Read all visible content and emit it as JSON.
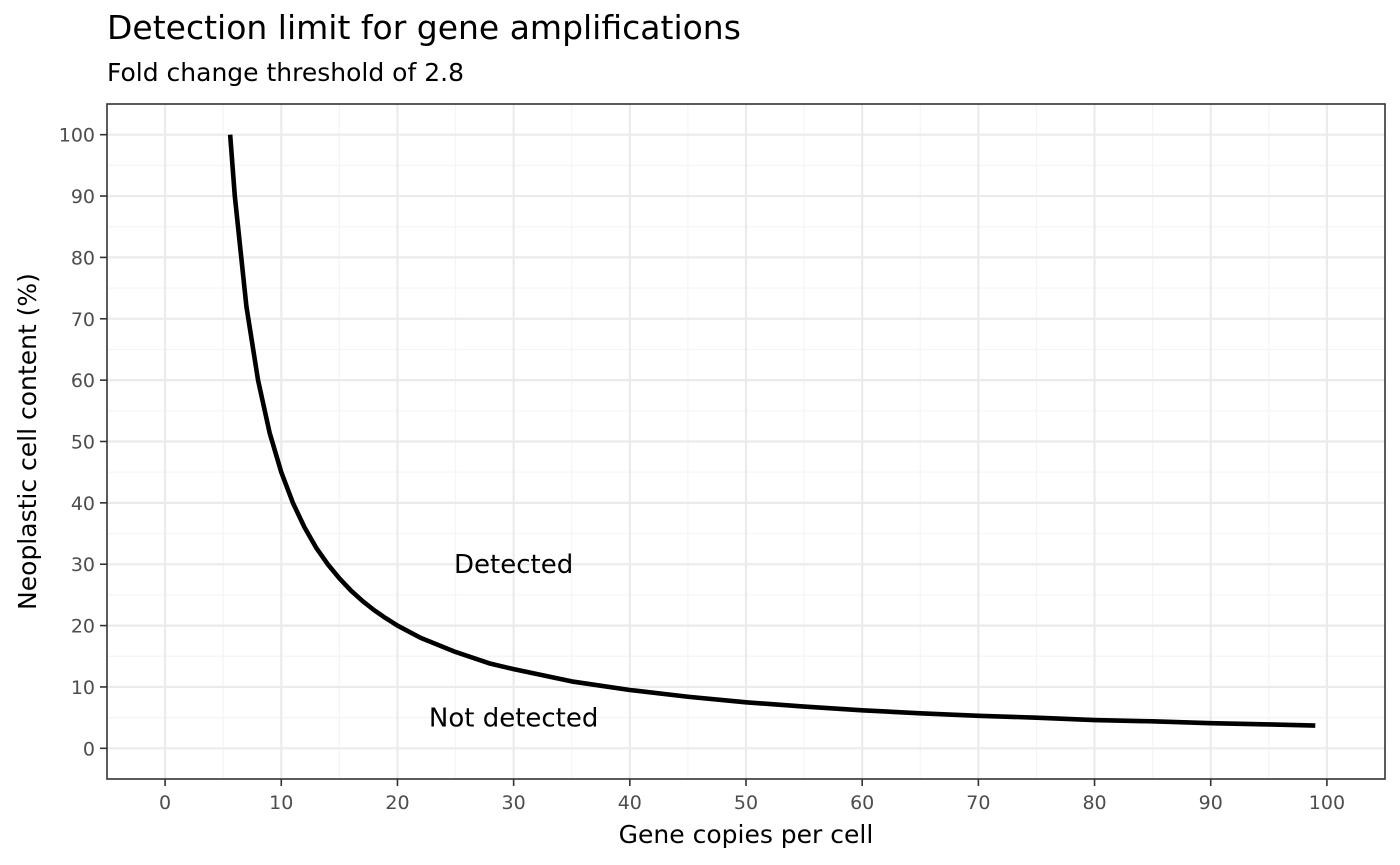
{
  "chart_data": {
    "type": "line",
    "title": "Detection limit for gene amplifications",
    "subtitle": "Fold change threshold of 2.8",
    "xlabel": "Gene copies per cell",
    "ylabel": "Neoplastic cell content (%)",
    "xlim": [
      -5,
      105
    ],
    "ylim": [
      -5,
      105
    ],
    "x_ticks": [
      0,
      10,
      20,
      30,
      40,
      50,
      60,
      70,
      80,
      90,
      100
    ],
    "y_ticks": [
      0,
      10,
      20,
      30,
      40,
      50,
      60,
      70,
      80,
      90,
      100
    ],
    "grid": true,
    "series": [
      {
        "color": "#000000",
        "x": [
          5.6,
          6,
          7,
          8,
          9,
          10,
          11,
          12,
          13,
          14,
          15,
          16,
          17,
          18,
          19,
          20,
          22,
          25,
          28,
          30,
          35,
          40,
          45,
          50,
          55,
          60,
          65,
          70,
          75,
          80,
          85,
          90,
          95,
          99
        ],
        "y": [
          100,
          90,
          72,
          60,
          51.4,
          45,
          40,
          36,
          32.7,
          30,
          27.7,
          25.7,
          24,
          22.5,
          21.2,
          20,
          18,
          15.7,
          13.8,
          12.9,
          10.9,
          9.5,
          8.4,
          7.5,
          6.8,
          6.2,
          5.7,
          5.3,
          5,
          4.6,
          4.4,
          4.1,
          3.9,
          3.7
        ]
      }
    ],
    "annotations": [
      {
        "text": "Detected",
        "x": 30,
        "y": 30
      },
      {
        "text": "Not detected",
        "x": 30,
        "y": 5
      }
    ]
  }
}
